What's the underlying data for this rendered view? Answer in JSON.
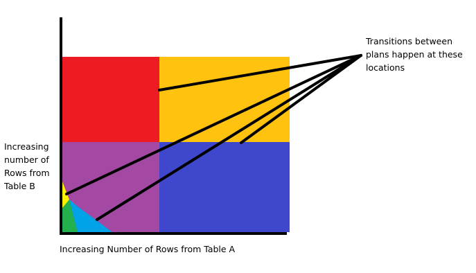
{
  "annotation": {
    "lines": [
      "Transitions between",
      "plans happen at these",
      "locations"
    ]
  },
  "y_axis_label": {
    "lines": [
      "Increasing",
      "number of",
      "Rows from",
      "Table B"
    ]
  },
  "x_axis_label": "Increasing Number of Rows from Table A"
}
